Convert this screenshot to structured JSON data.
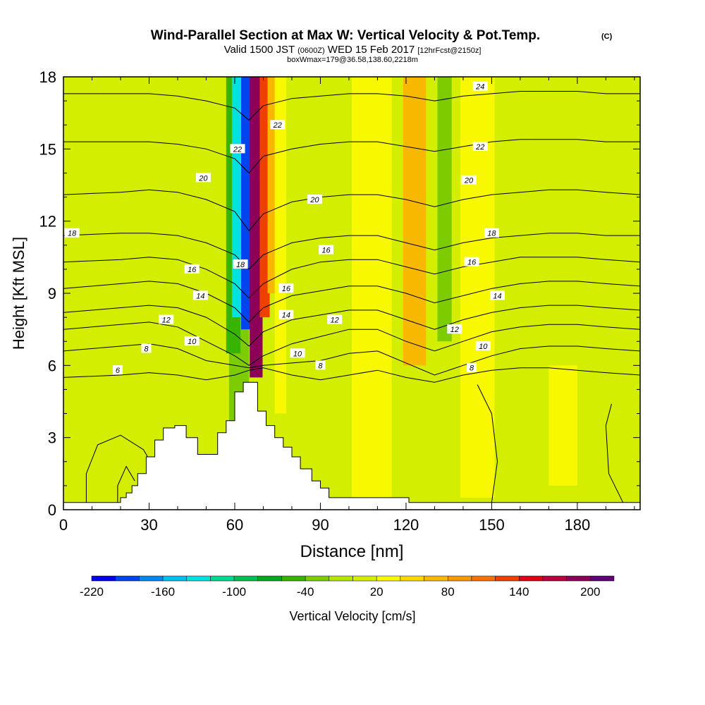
{
  "header": {
    "title": "Wind-Parallel Section at Max W: Vertical Velocity & Pot.Temp.",
    "copyright_mark": "(C)",
    "valid_prefix": "Valid 1500 JST",
    "valid_utc": "(0600Z)",
    "valid_date": "WED 15 Feb 2017",
    "forecast_tag": "[12hrFcst@2150z]",
    "box_info": "boxWmax=179@36.58,138.60,2218m"
  },
  "colors": {
    "background_field": "#d4ee00",
    "terrain": "#ffffff",
    "contour_line": "#000000",
    "frame": "#000000"
  },
  "chart_data": {
    "type": "heatmap",
    "xlabel": "Distance [nm]",
    "ylabel": "Height [Kft MSL]",
    "xlim": [
      0,
      202
    ],
    "ylim": [
      0,
      18
    ],
    "xticks": [
      0,
      30,
      60,
      90,
      120,
      150,
      180
    ],
    "yticks": [
      0,
      3,
      6,
      9,
      12,
      15,
      18
    ],
    "colorbar": {
      "label": "Vertical Velocity [cm/s]",
      "tick_labels": [
        "-220",
        "-160",
        "-100",
        "-40",
        "20",
        "80",
        "140",
        "200"
      ],
      "tick_values": [
        -220,
        -160,
        -100,
        -40,
        20,
        80,
        140,
        200
      ],
      "bin_edges": [
        -220,
        -200,
        -180,
        -160,
        -140,
        -120,
        -100,
        -80,
        -60,
        -40,
        -20,
        0,
        20,
        40,
        60,
        80,
        100,
        120,
        140,
        160,
        180,
        200,
        220
      ],
      "colors": [
        "#0000f0",
        "#0044f0",
        "#0088f0",
        "#00c0f0",
        "#00e0e0",
        "#00d890",
        "#00c050",
        "#00a820",
        "#38b400",
        "#7ccc00",
        "#b4e400",
        "#d4ee00",
        "#f8f800",
        "#f8d800",
        "#f8b800",
        "#f89800",
        "#f87000",
        "#f04000",
        "#e00018",
        "#b80040",
        "#8c0058",
        "#600078"
      ]
    },
    "terrain_profile": {
      "distance": [
        0,
        20,
        22,
        24,
        26,
        29,
        32,
        35,
        39,
        43,
        47,
        50,
        54,
        57,
        60,
        63,
        66,
        68,
        71,
        74,
        77,
        80,
        83,
        87,
        90,
        93,
        100,
        110,
        120,
        121,
        202
      ],
      "height": [
        0.3,
        0.5,
        0.7,
        1.0,
        1.5,
        2.2,
        2.9,
        3.4,
        3.5,
        3.0,
        2.3,
        2.3,
        3.2,
        3.7,
        4.9,
        5.3,
        5.3,
        4.1,
        3.5,
        3.0,
        2.6,
        2.2,
        1.7,
        1.2,
        0.9,
        0.5,
        0.5,
        0.5,
        0.5,
        0.3,
        0.3
      ]
    },
    "velocity_features": [
      {
        "center": 46.5,
        "width": 9,
        "bottom": 0,
        "top": 18,
        "value": 10
      },
      {
        "center": 61.5,
        "width": 7,
        "bottom": 0,
        "top": 18,
        "value": -30
      },
      {
        "center": 59.5,
        "width": 5,
        "bottom": 6.5,
        "top": 18,
        "value": -60
      },
      {
        "center": 61.5,
        "width": 5,
        "bottom": 8,
        "top": 18,
        "value": -130
      },
      {
        "center": 64.0,
        "width": 3.5,
        "bottom": 7.5,
        "top": 18,
        "value": -190
      },
      {
        "center": 67.5,
        "width": 4.5,
        "bottom": 5.5,
        "top": 18,
        "value": 180
      },
      {
        "center": 70.5,
        "width": 3.5,
        "bottom": 8,
        "top": 18,
        "value": 120
      },
      {
        "center": 73.5,
        "width": 4,
        "bottom": 9,
        "top": 18,
        "value": 60
      },
      {
        "center": 76.0,
        "width": 4,
        "bottom": 4,
        "top": 18,
        "value": 20
      },
      {
        "center": 108.0,
        "width": 14,
        "bottom": 0.5,
        "top": 18,
        "value": 25
      },
      {
        "center": 123.0,
        "width": 8,
        "bottom": 6,
        "top": 18,
        "value": 60
      },
      {
        "center": 133.5,
        "width": 5,
        "bottom": 7,
        "top": 18,
        "value": -25
      },
      {
        "center": 145.0,
        "width": 12,
        "bottom": 0.5,
        "top": 18,
        "value": 22
      },
      {
        "center": 175.0,
        "width": 10,
        "bottom": 1,
        "top": 6,
        "value": 25
      }
    ],
    "isentropes": {
      "x": [
        0,
        20,
        30,
        40,
        50,
        60,
        65,
        70,
        80,
        90,
        100,
        110,
        120,
        130,
        140,
        150,
        160,
        170,
        180,
        190,
        202
      ],
      "lines": [
        {
          "label": "6",
          "y": [
            5.5,
            5.6,
            5.7,
            5.6,
            5.4,
            5.6,
            5.8,
            5.9,
            5.6,
            5.4,
            5.6,
            5.8,
            5.5,
            5.3,
            5.6,
            5.8,
            5.9,
            5.9,
            5.8,
            5.7,
            5.6
          ]
        },
        {
          "label": "8",
          "y": [
            6.6,
            6.8,
            6.9,
            6.7,
            6.2,
            6.0,
            5.9,
            6.0,
            6.1,
            6.2,
            6.5,
            6.6,
            6.1,
            5.6,
            6.0,
            6.4,
            6.7,
            6.8,
            6.8,
            6.7,
            6.6
          ]
        },
        {
          "label": "10",
          "y": [
            7.5,
            7.7,
            7.8,
            7.6,
            7.0,
            6.4,
            6.0,
            6.4,
            6.9,
            7.2,
            7.5,
            7.5,
            7.0,
            6.6,
            7.0,
            7.4,
            7.6,
            7.7,
            7.7,
            7.6,
            7.5
          ]
        },
        {
          "label": "12",
          "y": [
            8.2,
            8.4,
            8.5,
            8.4,
            8.0,
            7.3,
            6.8,
            7.4,
            7.9,
            8.1,
            8.3,
            8.3,
            7.9,
            7.5,
            7.9,
            8.2,
            8.4,
            8.5,
            8.5,
            8.4,
            8.3
          ]
        },
        {
          "label": "14",
          "y": [
            9.2,
            9.4,
            9.5,
            9.4,
            9.0,
            8.4,
            7.8,
            8.4,
            8.9,
            9.1,
            9.3,
            9.3,
            9.0,
            8.6,
            8.9,
            9.2,
            9.4,
            9.5,
            9.5,
            9.4,
            9.3
          ]
        },
        {
          "label": "16",
          "y": [
            10.3,
            10.4,
            10.5,
            10.4,
            10.0,
            9.4,
            8.8,
            9.4,
            10.0,
            10.3,
            10.4,
            10.4,
            10.1,
            9.8,
            10.1,
            10.3,
            10.5,
            10.5,
            10.5,
            10.4,
            10.3
          ]
        },
        {
          "label": "18",
          "y": [
            11.4,
            11.5,
            11.5,
            11.4,
            11.1,
            10.6,
            10.0,
            10.6,
            11.1,
            11.3,
            11.4,
            11.4,
            11.1,
            10.8,
            11.1,
            11.3,
            11.4,
            11.5,
            11.5,
            11.4,
            11.4
          ]
        },
        {
          "label": "20",
          "y": [
            13.1,
            13.2,
            13.3,
            13.2,
            12.9,
            12.4,
            11.6,
            12.3,
            12.8,
            13.0,
            13.1,
            13.1,
            12.9,
            12.6,
            12.9,
            13.1,
            13.2,
            13.3,
            13.3,
            13.2,
            13.1
          ]
        },
        {
          "label": "22",
          "y": [
            15.3,
            15.3,
            15.3,
            15.2,
            15.0,
            14.6,
            14.0,
            14.7,
            15.0,
            15.2,
            15.3,
            15.3,
            15.1,
            14.9,
            15.1,
            15.3,
            15.4,
            15.4,
            15.4,
            15.3,
            15.3
          ]
        },
        {
          "label": "24",
          "y": [
            17.3,
            17.3,
            17.3,
            17.2,
            17.0,
            16.7,
            16.2,
            16.8,
            17.1,
            17.2,
            17.3,
            17.3,
            17.2,
            17.0,
            17.2,
            17.3,
            17.4,
            17.4,
            17.4,
            17.3,
            17.3
          ]
        }
      ],
      "labels": [
        {
          "text": "6",
          "x": 19,
          "y": 5.8
        },
        {
          "text": "8",
          "x": 29,
          "y": 6.7
        },
        {
          "text": "10",
          "x": 45,
          "y": 7.0
        },
        {
          "text": "12",
          "x": 36,
          "y": 7.9
        },
        {
          "text": "14",
          "x": 48,
          "y": 8.9
        },
        {
          "text": "16",
          "x": 45,
          "y": 10.0
        },
        {
          "text": "18",
          "x": 3,
          "y": 11.5
        },
        {
          "text": "20",
          "x": 49,
          "y": 13.8
        },
        {
          "text": "22",
          "x": 61,
          "y": 15.0
        },
        {
          "text": "18",
          "x": 62,
          "y": 10.2
        },
        {
          "text": "22",
          "x": 75,
          "y": 16.0
        },
        {
          "text": "16",
          "x": 78,
          "y": 9.2
        },
        {
          "text": "14",
          "x": 78,
          "y": 8.1
        },
        {
          "text": "10",
          "x": 82,
          "y": 6.5
        },
        {
          "text": "8",
          "x": 90,
          "y": 6.0
        },
        {
          "text": "12",
          "x": 95,
          "y": 7.9
        },
        {
          "text": "16",
          "x": 92,
          "y": 10.8
        },
        {
          "text": "20",
          "x": 88,
          "y": 12.9
        },
        {
          "text": "24",
          "x": 146,
          "y": 17.6
        },
        {
          "text": "22",
          "x": 146,
          "y": 15.1
        },
        {
          "text": "20",
          "x": 142,
          "y": 13.7
        },
        {
          "text": "18",
          "x": 150,
          "y": 11.5
        },
        {
          "text": "16",
          "x": 143,
          "y": 10.3
        },
        {
          "text": "14",
          "x": 152,
          "y": 8.9
        },
        {
          "text": "12",
          "x": 137,
          "y": 7.5
        },
        {
          "text": "10",
          "x": 147,
          "y": 6.8
        },
        {
          "text": "8",
          "x": 143,
          "y": 5.9
        }
      ]
    },
    "low_level_contours": [
      {
        "x": [
          8,
          8,
          12,
          20,
          28,
          33
        ],
        "y": [
          0.3,
          1.5,
          2.7,
          3.1,
          2.5,
          1.5
        ]
      },
      {
        "x": [
          19,
          19,
          22,
          25
        ],
        "y": [
          0.3,
          1.0,
          1.8,
          1.2
        ]
      },
      {
        "x": [
          150,
          152,
          150,
          145
        ],
        "y": [
          0.3,
          2.0,
          4.0,
          5.2
        ]
      },
      {
        "x": [
          196,
          191,
          190,
          192
        ],
        "y": [
          0.3,
          1.5,
          3.5,
          4.4
        ]
      }
    ]
  }
}
